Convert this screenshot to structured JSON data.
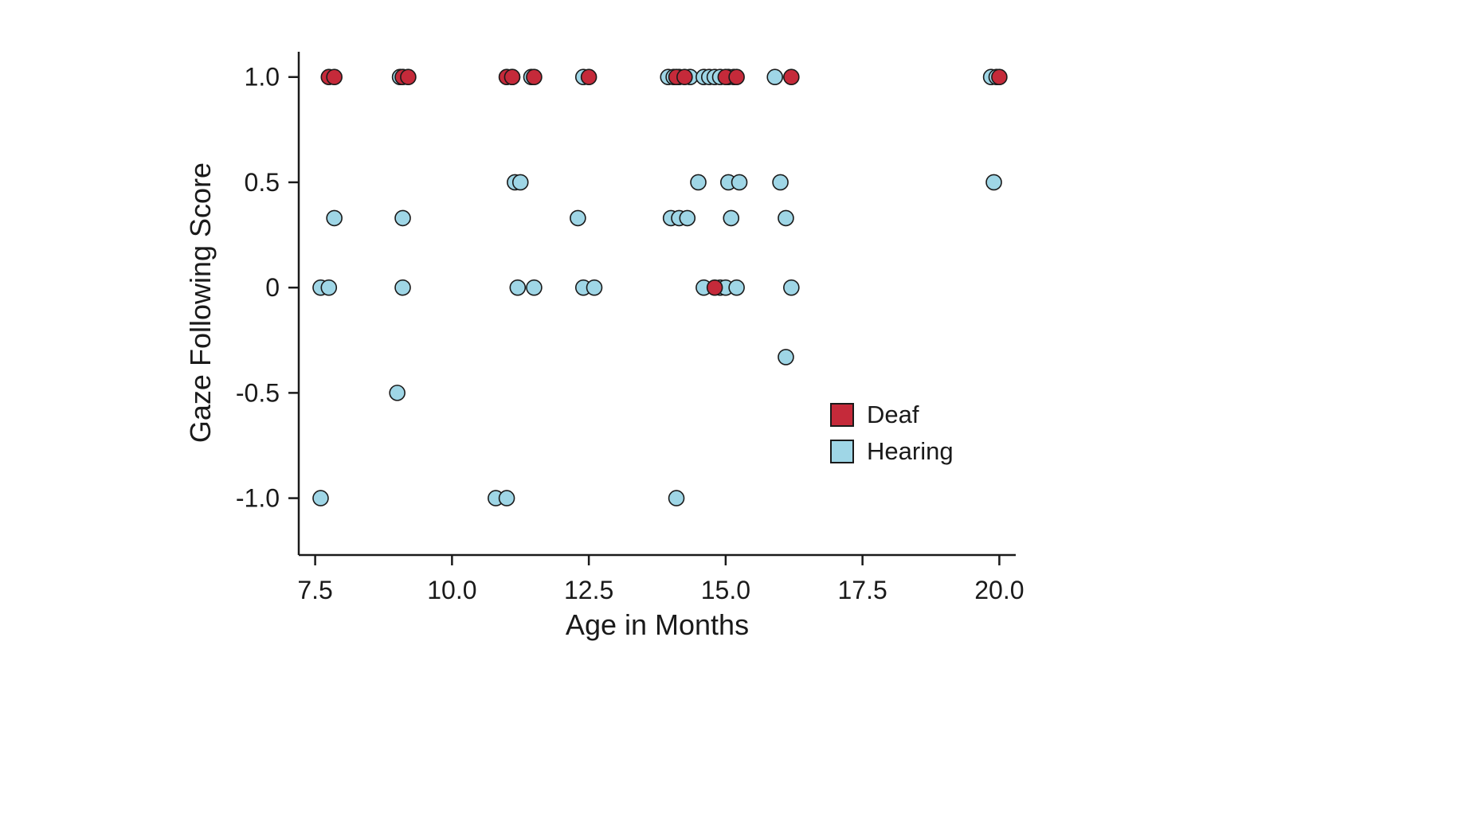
{
  "chart_data": {
    "type": "scatter",
    "title": "",
    "xlabel": "Age in Months",
    "ylabel": "Gaze Following Score",
    "xlim": [
      7.2,
      20.3
    ],
    "ylim": [
      -1.27,
      1.12
    ],
    "grid": false,
    "x_ticks": [
      {
        "value": 7.5,
        "label": "7.5"
      },
      {
        "value": 10.0,
        "label": "10.0"
      },
      {
        "value": 12.5,
        "label": "12.5"
      },
      {
        "value": 15.0,
        "label": "15.0"
      },
      {
        "value": 17.5,
        "label": "17.5"
      },
      {
        "value": 20.0,
        "label": "20.0"
      }
    ],
    "y_ticks": [
      {
        "value": 1.0,
        "label": "1.0"
      },
      {
        "value": 0.5,
        "label": "0.5"
      },
      {
        "value": 0.0,
        "label": "0"
      },
      {
        "value": -0.5,
        "label": "-0.5"
      },
      {
        "value": -1.0,
        "label": "-1.0"
      }
    ],
    "legend": {
      "position": "lower-right"
    },
    "marker": {
      "radius": 9.5,
      "edge_color": "#1a1a1a",
      "edge_width": 1.6
    },
    "series": [
      {
        "name": "Deaf",
        "color": "#c52a3a",
        "points": [
          [
            7.75,
            1.0
          ],
          [
            7.85,
            1.0
          ],
          [
            9.1,
            1.0
          ],
          [
            9.2,
            1.0
          ],
          [
            11.0,
            1.0
          ],
          [
            11.1,
            1.0
          ],
          [
            11.5,
            1.0
          ],
          [
            12.5,
            1.0
          ],
          [
            14.1,
            1.0
          ],
          [
            14.25,
            1.0
          ],
          [
            15.0,
            1.0
          ],
          [
            15.2,
            1.0
          ],
          [
            16.2,
            1.0
          ],
          [
            20.0,
            1.0
          ],
          [
            14.8,
            0.0
          ]
        ]
      },
      {
        "name": "Hearing",
        "color": "#9fd6e6",
        "points": [
          [
            9.05,
            1.0
          ],
          [
            11.1,
            1.0
          ],
          [
            11.45,
            1.0
          ],
          [
            12.4,
            1.0
          ],
          [
            13.95,
            1.0
          ],
          [
            14.05,
            1.0
          ],
          [
            14.15,
            1.0
          ],
          [
            14.35,
            1.0
          ],
          [
            14.6,
            1.0
          ],
          [
            14.7,
            1.0
          ],
          [
            14.8,
            1.0
          ],
          [
            14.9,
            1.0
          ],
          [
            15.05,
            1.0
          ],
          [
            15.15,
            1.0
          ],
          [
            15.9,
            1.0
          ],
          [
            19.85,
            1.0
          ],
          [
            19.95,
            1.0
          ],
          [
            11.15,
            0.5
          ],
          [
            11.25,
            0.5
          ],
          [
            14.5,
            0.5
          ],
          [
            15.05,
            0.5
          ],
          [
            15.25,
            0.5
          ],
          [
            16.0,
            0.5
          ],
          [
            19.9,
            0.5
          ],
          [
            7.85,
            0.33
          ],
          [
            9.1,
            0.33
          ],
          [
            12.3,
            0.33
          ],
          [
            14.0,
            0.33
          ],
          [
            14.15,
            0.33
          ],
          [
            14.3,
            0.33
          ],
          [
            15.1,
            0.33
          ],
          [
            16.1,
            0.33
          ],
          [
            7.6,
            0.0
          ],
          [
            7.75,
            0.0
          ],
          [
            9.1,
            0.0
          ],
          [
            11.2,
            0.0
          ],
          [
            11.5,
            0.0
          ],
          [
            12.4,
            0.0
          ],
          [
            12.6,
            0.0
          ],
          [
            14.6,
            0.0
          ],
          [
            14.9,
            0.0
          ],
          [
            15.0,
            0.0
          ],
          [
            15.2,
            0.0
          ],
          [
            16.2,
            0.0
          ],
          [
            16.1,
            -0.33
          ],
          [
            9.0,
            -0.5
          ],
          [
            7.6,
            -1.0
          ],
          [
            10.8,
            -1.0
          ],
          [
            11.0,
            -1.0
          ],
          [
            14.1,
            -1.0
          ]
        ]
      }
    ]
  }
}
